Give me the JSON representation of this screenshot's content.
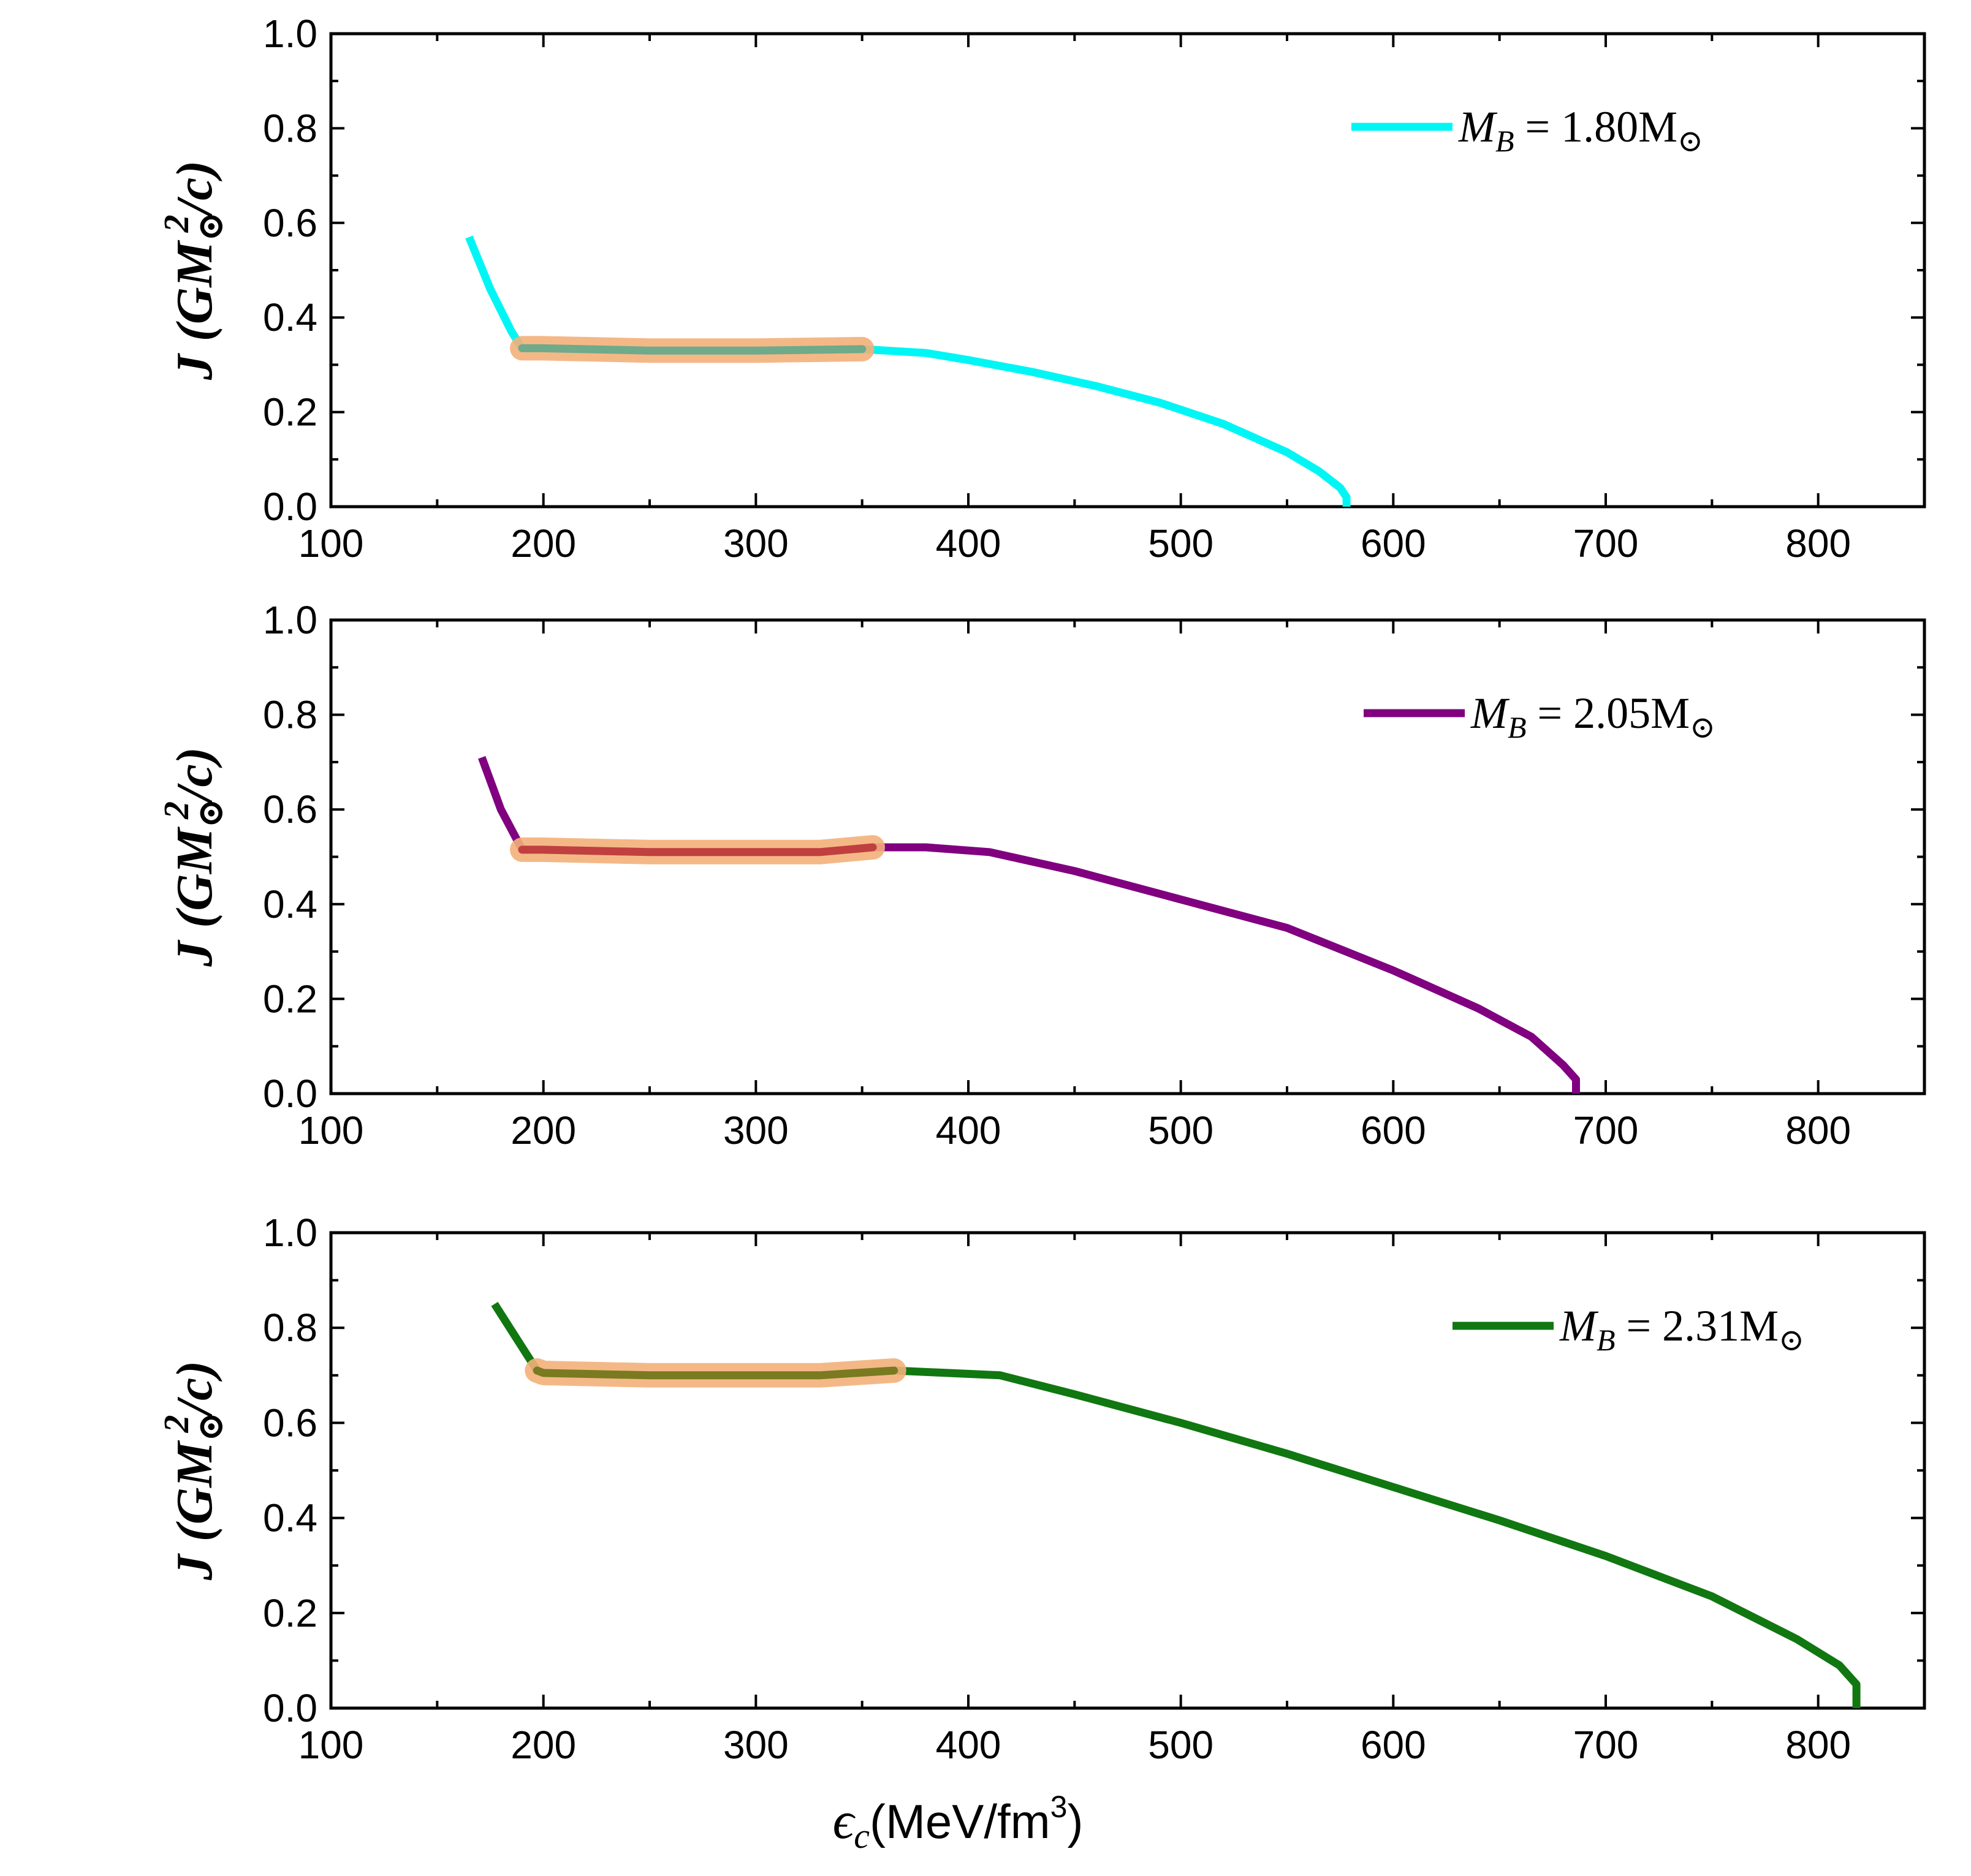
{
  "figure": {
    "xlabel": "ϵ_c(MeV/fm³)",
    "xlabel_main": "ϵ",
    "xlabel_sub": "c",
    "xlabel_unit": "(MeV/fm",
    "xlabel_sup": "3",
    "xlabel_close": ")",
    "ylabel": "J (GM⊙²/c)",
    "ylabel_J": "J",
    "ylabel_open": "(",
    "ylabel_G": "GM",
    "ylabel_sub": "⊙",
    "ylabel_sup": "2",
    "ylabel_rest": "/c)"
  },
  "chart_data": [
    {
      "type": "line",
      "xlim": [
        100,
        850
      ],
      "ylim": [
        0.0,
        1.0
      ],
      "xticks": [
        100,
        200,
        300,
        400,
        500,
        600,
        700,
        800
      ],
      "xtick_labels": [
        "100",
        "200",
        "300",
        "400",
        "500",
        "600",
        "700",
        "800"
      ],
      "yticks": [
        0.0,
        0.2,
        0.4,
        0.6,
        0.8,
        1.0
      ],
      "ytick_labels": [
        "0.0",
        "0.2",
        "0.4",
        "0.6",
        "0.8",
        "1.0"
      ],
      "legend_position": "top-right",
      "series": [
        {
          "name": "M_B = 1.80M⊙",
          "legend_main": "M",
          "legend_sub": "B",
          "legend_rest": " = 1.80M",
          "legend_sun": "⊙",
          "color": "#00f5f5",
          "x": [
            165,
            175,
            185,
            190,
            200,
            250,
            300,
            350,
            380,
            400,
            430,
            460,
            490,
            520,
            550,
            565,
            575,
            578,
            578
          ],
          "y": [
            0.57,
            0.46,
            0.37,
            0.335,
            0.335,
            0.33,
            0.33,
            0.333,
            0.325,
            0.31,
            0.285,
            0.255,
            0.22,
            0.175,
            0.115,
            0.075,
            0.04,
            0.02,
            0.0
          ]
        }
      ],
      "highlight": {
        "color": "#f3b07a",
        "overlay_color": "#6faa8a",
        "x": [
          190,
          200,
          250,
          300,
          350
        ],
        "y": [
          0.335,
          0.335,
          0.33,
          0.33,
          0.333
        ]
      }
    },
    {
      "type": "line",
      "xlim": [
        100,
        850
      ],
      "ylim": [
        0.0,
        1.0
      ],
      "xticks": [
        100,
        200,
        300,
        400,
        500,
        600,
        700,
        800
      ],
      "xtick_labels": [
        "100",
        "200",
        "300",
        "400",
        "500",
        "600",
        "700",
        "800"
      ],
      "yticks": [
        0.0,
        0.2,
        0.4,
        0.6,
        0.8,
        1.0
      ],
      "ytick_labels": [
        "0.0",
        "0.2",
        "0.4",
        "0.6",
        "0.8",
        "1.0"
      ],
      "legend_position": "top-right",
      "series": [
        {
          "name": "M_B = 2.05M⊙",
          "legend_main": "M",
          "legend_sub": "B",
          "legend_rest": " = 2.05M",
          "legend_sun": "⊙",
          "color": "#800080",
          "x": [
            171,
            180,
            190,
            200,
            250,
            300,
            330,
            355,
            380,
            410,
            450,
            500,
            550,
            600,
            640,
            665,
            680,
            686,
            686
          ],
          "y": [
            0.71,
            0.6,
            0.515,
            0.515,
            0.51,
            0.51,
            0.51,
            0.52,
            0.52,
            0.51,
            0.47,
            0.41,
            0.35,
            0.26,
            0.18,
            0.12,
            0.06,
            0.03,
            0.0
          ]
        }
      ],
      "highlight": {
        "color": "#f3b07a",
        "overlay_color": "#c0403f",
        "x": [
          190,
          200,
          250,
          300,
          330,
          355
        ],
        "y": [
          0.515,
          0.515,
          0.51,
          0.51,
          0.51,
          0.52
        ]
      }
    },
    {
      "type": "line",
      "xlim": [
        100,
        850
      ],
      "ylim": [
        0.0,
        1.0
      ],
      "xticks": [
        100,
        200,
        300,
        400,
        500,
        600,
        700,
        800
      ],
      "xtick_labels": [
        "100",
        "200",
        "300",
        "400",
        "500",
        "600",
        "700",
        "800"
      ],
      "yticks": [
        0.0,
        0.2,
        0.4,
        0.6,
        0.8,
        1.0
      ],
      "ytick_labels": [
        "0.0",
        "0.2",
        "0.4",
        "0.6",
        "0.8",
        "1.0"
      ],
      "legend_position": "top-right",
      "series": [
        {
          "name": "M_B = 2.31M⊙",
          "legend_main": "M",
          "legend_sub": "B",
          "legend_rest": " = 2.31M",
          "legend_sun": "⊙",
          "color": "#117711",
          "x": [
            177,
            187,
            197,
            200,
            250,
            300,
            330,
            365,
            415,
            450,
            500,
            550,
            600,
            650,
            700,
            750,
            790,
            810,
            818,
            818
          ],
          "y": [
            0.85,
            0.78,
            0.71,
            0.705,
            0.7,
            0.7,
            0.7,
            0.71,
            0.7,
            0.66,
            0.6,
            0.535,
            0.465,
            0.395,
            0.32,
            0.235,
            0.145,
            0.09,
            0.05,
            0.0
          ]
        }
      ],
      "highlight": {
        "color": "#f3b07a",
        "overlay_color": "#7a7a20",
        "x": [
          197,
          200,
          250,
          300,
          330,
          365
        ],
        "y": [
          0.71,
          0.705,
          0.7,
          0.7,
          0.7,
          0.71
        ]
      }
    }
  ]
}
